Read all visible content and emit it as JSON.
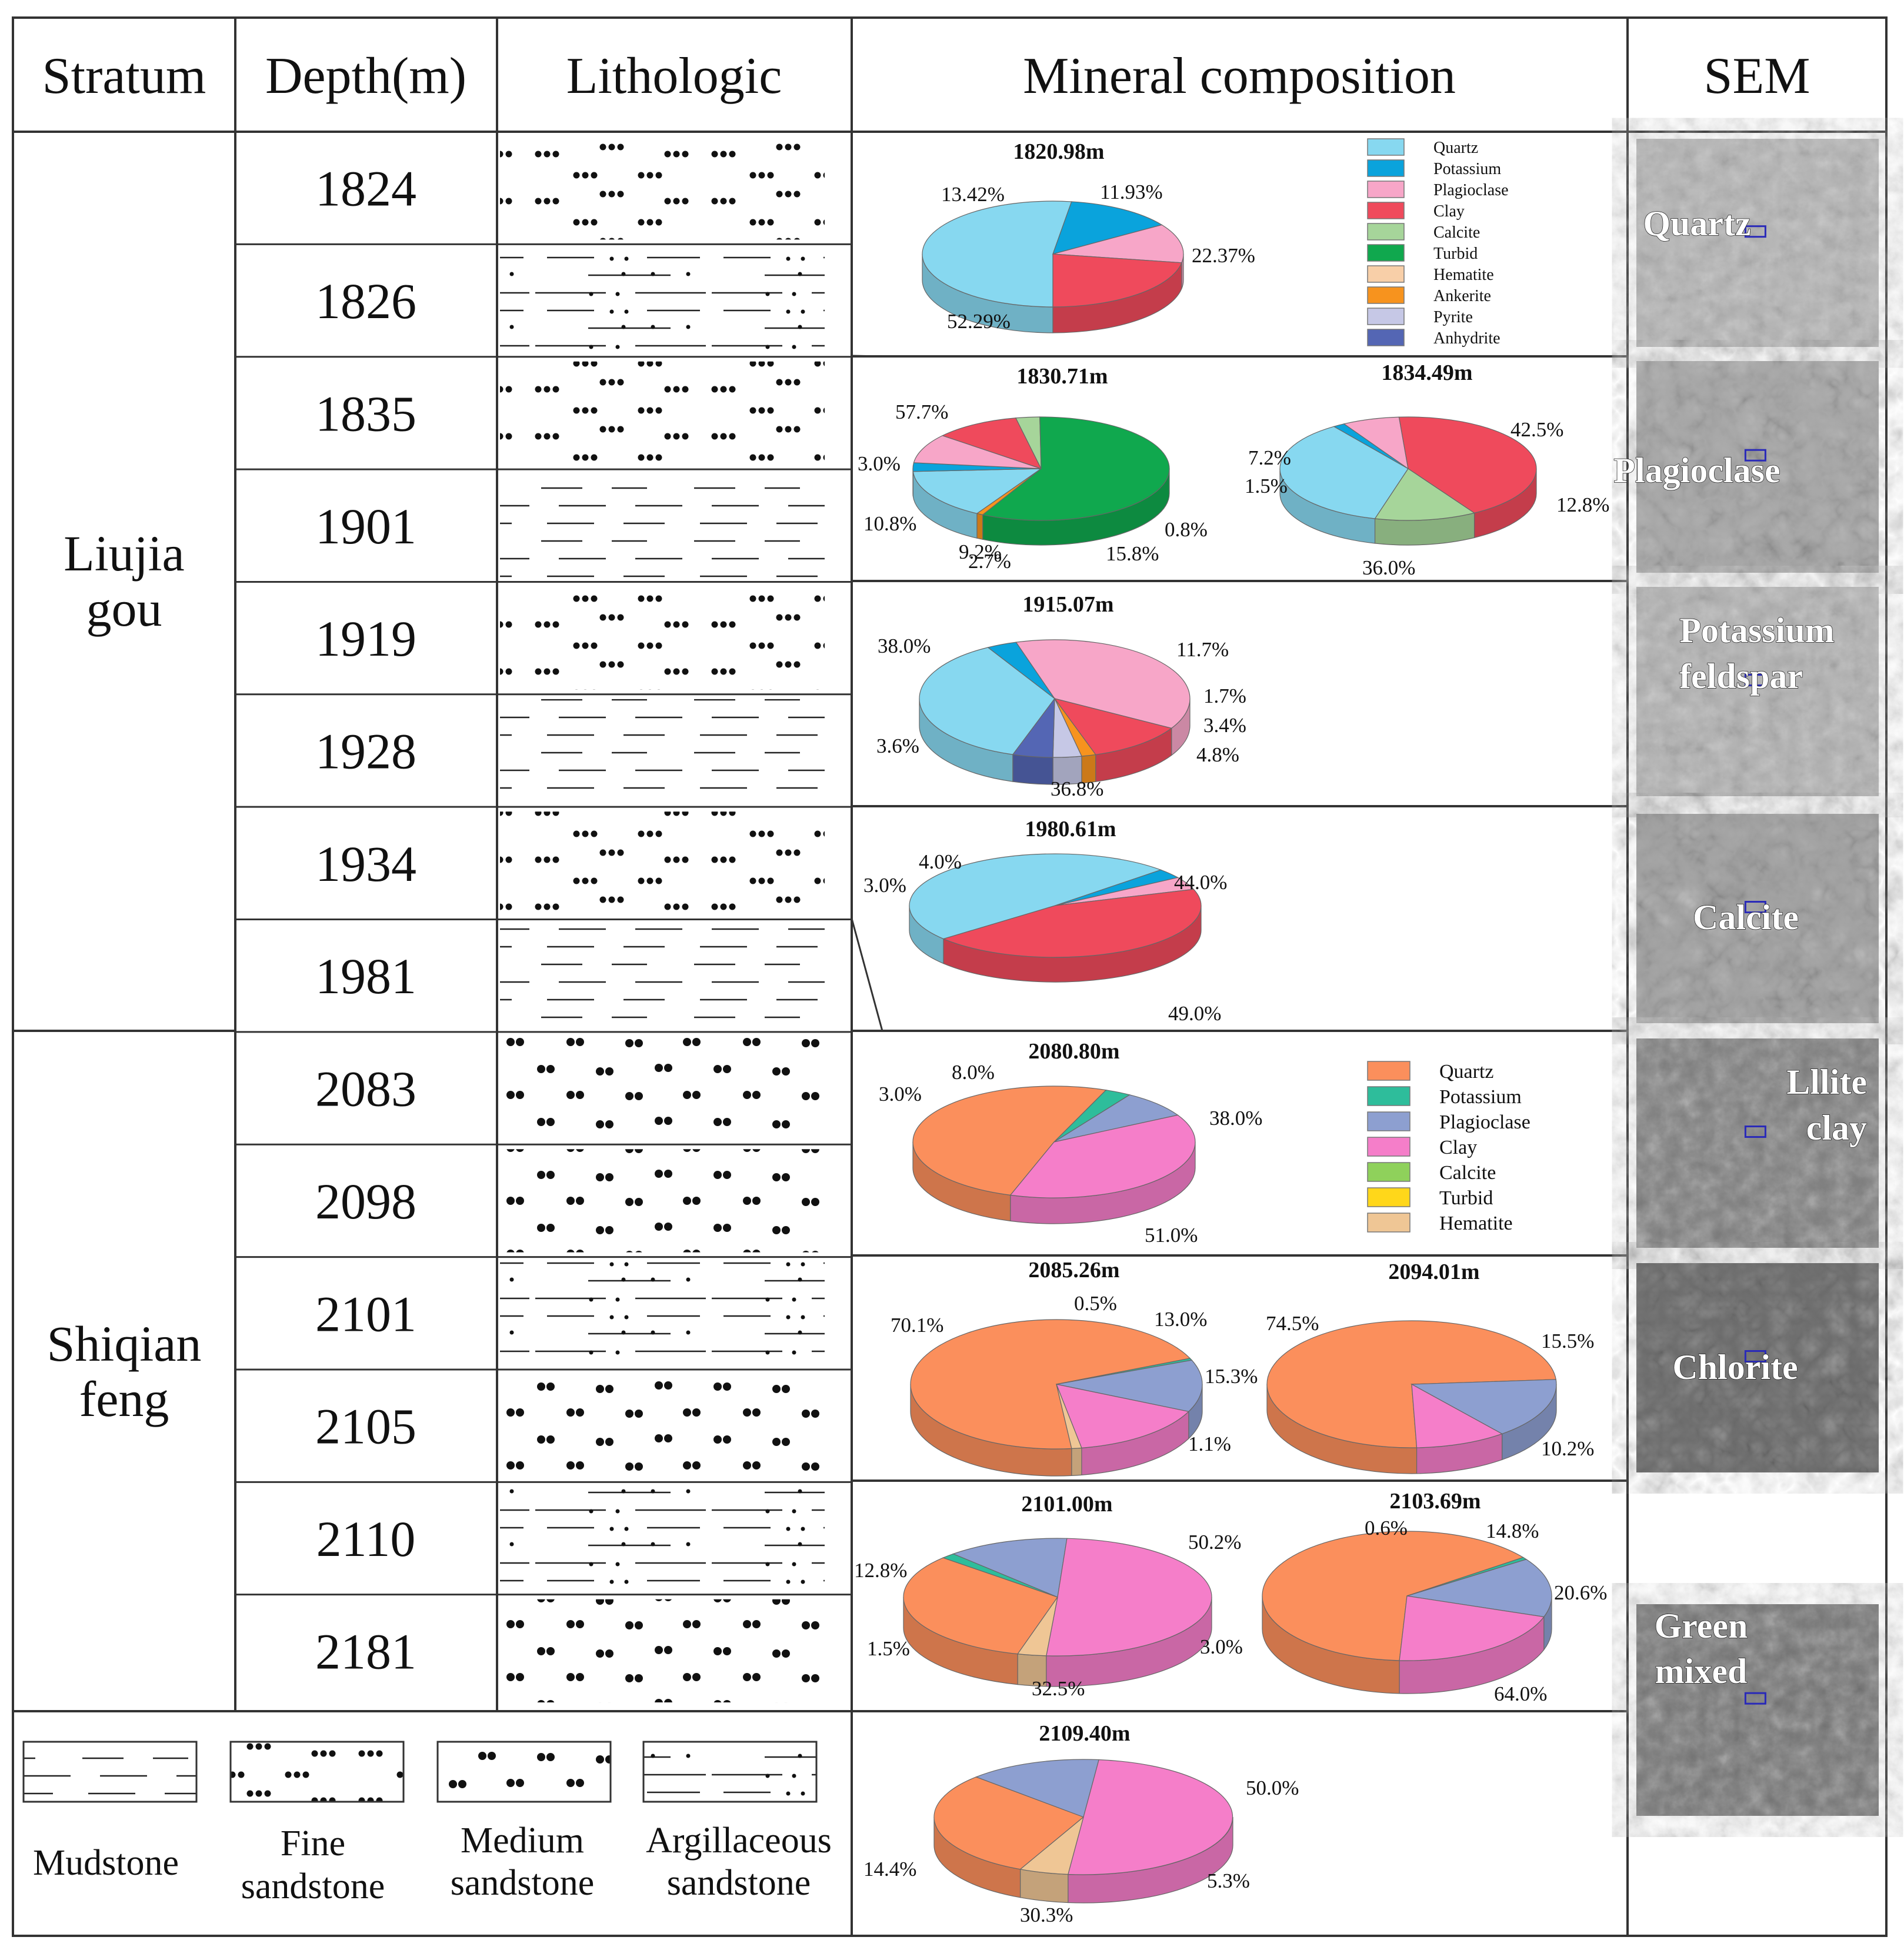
{
  "headers": {
    "stratum": "Stratum",
    "depth": "Depth(m)",
    "lithologic": "Lithologic",
    "mineral": "Mineral composition",
    "sem": "SEM"
  },
  "strata": [
    {
      "line1": "Liujia",
      "line2": "gou"
    },
    {
      "line1": "Shiqian",
      "line2": "feng"
    }
  ],
  "depths": [
    "1824",
    "1826",
    "1835",
    "1901",
    "1919",
    "1928",
    "1934",
    "1981",
    "2083",
    "2098",
    "2101",
    "2105",
    "2110",
    "2181"
  ],
  "lith_legend": [
    {
      "line1": "Mudstone",
      "line2": ""
    },
    {
      "line1": "Fine",
      "line2": "sandstone"
    },
    {
      "line1": "Medium",
      "line2": "sandstone"
    },
    {
      "line1": "Argillaceous",
      "line2": "sandstone"
    }
  ],
  "legend_upper": {
    "items": [
      "Quartz",
      "Potassium",
      "Plagioclase",
      "Clay",
      "Calcite",
      "Turbid",
      "Hematite",
      "Ankerite",
      "Pyrite",
      "Anhydrite"
    ],
    "colors": [
      "#87d8f0",
      "#0aa3dc",
      "#f7a6c8",
      "#ef4a5c",
      "#a6d59a",
      "#10a84e",
      "#f8cfa8",
      "#f7931e",
      "#c6c8e6",
      "#5466b4"
    ]
  },
  "legend_lower": {
    "items": [
      "Quartz",
      "Potassium",
      "Plagioclase",
      "Clay",
      "Calcite",
      "Turbid",
      "Hematite"
    ],
    "colors": [
      "#fb8f5c",
      "#2ebd9b",
      "#8d9fd0",
      "#f57ec9",
      "#8fd15b",
      "#ffd71a",
      "#efc695"
    ]
  },
  "chart_data": [
    {
      "type": "pie",
      "title": "1820.98m",
      "slices": [
        {
          "label": "Quartz",
          "value": 52.29,
          "text": "52.29%"
        },
        {
          "label": "Potassium",
          "value": 13.42,
          "text": "13.42%"
        },
        {
          "label": "Plagioclase",
          "value": 11.93,
          "text": "11.93%"
        },
        {
          "label": "Clay",
          "value": 22.37,
          "text": "22.37%"
        }
      ]
    },
    {
      "type": "pie",
      "title": "1830.71m",
      "slices": [
        {
          "label": "Quartz",
          "value": 15.8,
          "text": "15.8%"
        },
        {
          "label": "Potassium",
          "value": 2.7,
          "text": "2.7%"
        },
        {
          "label": "Plagioclase",
          "value": 9.2,
          "text": "9.2%"
        },
        {
          "label": "Clay",
          "value": 10.8,
          "text": "10.8%"
        },
        {
          "label": "Calcite",
          "value": 3.0,
          "text": "3.0%"
        },
        {
          "label": "Turbid",
          "value": 57.7,
          "text": "57.7%"
        },
        {
          "label": "Ankerite",
          "value": 0.8,
          "text": "0.8%"
        }
      ]
    },
    {
      "type": "pie",
      "title": "1834.49m",
      "slices": [
        {
          "label": "Quartz",
          "value": 36.0,
          "text": "36.0%"
        },
        {
          "label": "Potassium",
          "value": 1.5,
          "text": "1.5%"
        },
        {
          "label": "Plagioclase",
          "value": 7.2,
          "text": "7.2%"
        },
        {
          "label": "Clay",
          "value": 42.5,
          "text": "42.5%"
        },
        {
          "label": "Calcite",
          "value": 12.8,
          "text": "12.8%"
        }
      ]
    },
    {
      "type": "pie",
      "title": "1915.07m",
      "slices": [
        {
          "label": "Quartz",
          "value": 36.8,
          "text": "36.8%"
        },
        {
          "label": "Potassium",
          "value": 3.6,
          "text": "3.6%"
        },
        {
          "label": "Plagioclase",
          "value": 38.0,
          "text": "38.0%"
        },
        {
          "label": "Clay",
          "value": 11.7,
          "text": "11.7%"
        },
        {
          "label": "Ankerite",
          "value": 1.7,
          "text": "1.7%"
        },
        {
          "label": "Pyrite",
          "value": 3.4,
          "text": "3.4%"
        },
        {
          "label": "Anhydrite",
          "value": 4.8,
          "text": "4.8%"
        }
      ]
    },
    {
      "type": "pie",
      "title": "1980.61m",
      "slices": [
        {
          "label": "Quartz",
          "value": 49.0,
          "text": "49.0%"
        },
        {
          "label": "Potassium",
          "value": 3.0,
          "text": "3.0%"
        },
        {
          "label": "Plagioclase",
          "value": 4.0,
          "text": "4.0%"
        },
        {
          "label": "Clay",
          "value": 44.0,
          "text": "44.0%"
        }
      ]
    },
    {
      "type": "pie",
      "title": "2080.80m",
      "slices": [
        {
          "label": "Quartz",
          "value": 51.0,
          "text": "51.0%"
        },
        {
          "label": "Potassium",
          "value": 3.0,
          "text": "3.0%"
        },
        {
          "label": "Plagioclase",
          "value": 8.0,
          "text": "8.0%"
        },
        {
          "label": "Clay",
          "value": 38.0,
          "text": "38.0%"
        }
      ]
    },
    {
      "type": "pie",
      "title": "2085.26m",
      "slices": [
        {
          "label": "Quartz",
          "value": 70.1,
          "text": "70.1%"
        },
        {
          "label": "Potassium",
          "value": 0.5,
          "text": "0.5%"
        },
        {
          "label": "Plagioclase",
          "value": 13.0,
          "text": "13.0%"
        },
        {
          "label": "Clay",
          "value": 15.3,
          "text": "15.3%"
        },
        {
          "label": "Hematite",
          "value": 1.1,
          "text": "1.1%"
        }
      ]
    },
    {
      "type": "pie",
      "title": "2094.01m",
      "slices": [
        {
          "label": "Quartz",
          "value": 74.5,
          "text": "74.5%"
        },
        {
          "label": "Plagioclase",
          "value": 15.5,
          "text": "15.5%"
        },
        {
          "label": "Clay",
          "value": 10.2,
          "text": "10.2%"
        }
      ]
    },
    {
      "type": "pie",
      "title": "2101.00m",
      "slices": [
        {
          "label": "Quartz",
          "value": 32.5,
          "text": "32.5%"
        },
        {
          "label": "Potassium",
          "value": 1.5,
          "text": "1.5%"
        },
        {
          "label": "Plagioclase",
          "value": 12.8,
          "text": "12.8%"
        },
        {
          "label": "Clay",
          "value": 50.2,
          "text": "50.2%"
        },
        {
          "label": "Hematite",
          "value": 3.0,
          "text": "3.0%"
        }
      ]
    },
    {
      "type": "pie",
      "title": "2103.69m",
      "slices": [
        {
          "label": "Quartz",
          "value": 64.0,
          "text": "64.0%"
        },
        {
          "label": "Potassium",
          "value": 0.6,
          "text": "0.6%"
        },
        {
          "label": "Plagioclase",
          "value": 14.8,
          "text": "14.8%"
        },
        {
          "label": "Clay",
          "value": 20.6,
          "text": "20.6%"
        }
      ]
    },
    {
      "type": "pie",
      "title": "2109.40m",
      "slices": [
        {
          "label": "Quartz",
          "value": 30.3,
          "text": "30.3%"
        },
        {
          "label": "Plagioclase",
          "value": 14.4,
          "text": "14.4%"
        },
        {
          "label": "Clay",
          "value": 50.0,
          "text": "50.0%"
        },
        {
          "label": "Hematite",
          "value": 5.3,
          "text": "5.3%"
        }
      ]
    }
  ],
  "sem_panels": [
    {
      "line1": "Quartz",
      "line2": "",
      "tone": "#b4b4b4"
    },
    {
      "line1": "Plagioclase",
      "line2": "",
      "tone": "#a9a9a9"
    },
    {
      "line1": "Potassium",
      "line2": "feldspar",
      "tone": "#b1b1b1"
    },
    {
      "line1": "Calcite",
      "line2": "",
      "tone": "#a3a3a3"
    },
    {
      "line1": "Lllite",
      "line2": "clay",
      "tone": "#7d7d7d"
    },
    {
      "line1": "Chlorite",
      "line2": "",
      "tone": "#6e6e6e"
    },
    {
      "line1": "Green",
      "line2": "mixed",
      "tone": "#737373"
    }
  ]
}
